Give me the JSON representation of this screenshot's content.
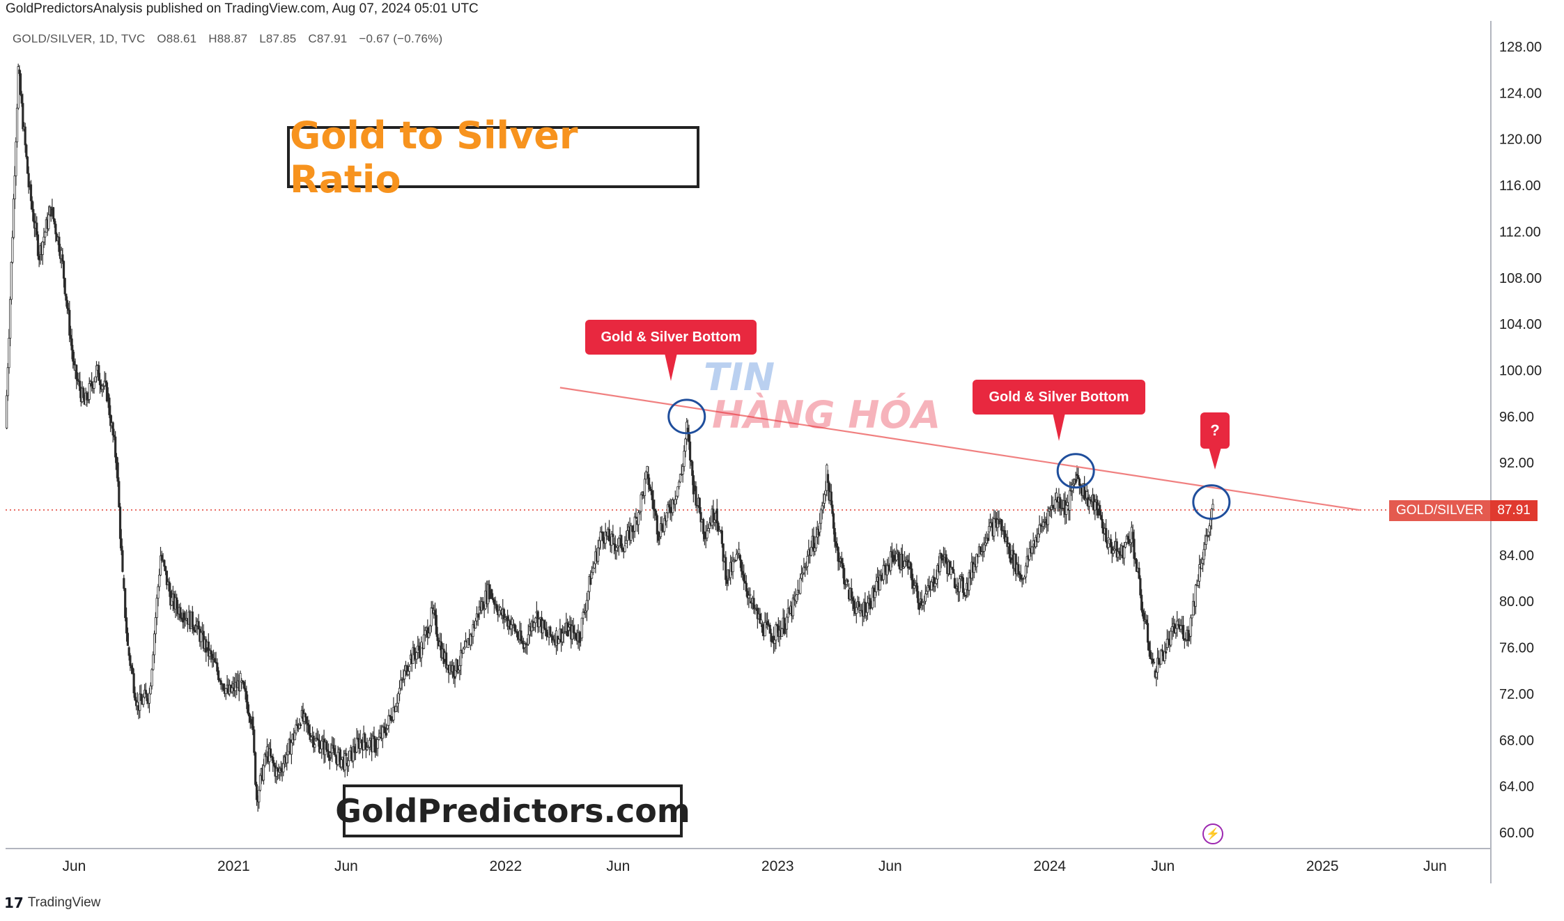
{
  "header": {
    "published": "GoldPredictorsAnalysis published on TradingView.com, Aug 07, 2024 05:01 UTC",
    "symbol_info": "GOLD/SILVER, 1D, TVC",
    "open": "O88.61",
    "high": "H88.87",
    "low": "L87.85",
    "close": "C87.91",
    "change": "−0.67 (−0.76%)"
  },
  "title_box": "Gold to Silver Ratio",
  "watermark_box": "GoldPredictors.com",
  "callouts": [
    "Gold & Silver Bottom",
    "Gold & Silver Bottom",
    "?"
  ],
  "price_tag": {
    "symbol": "GOLD/SILVER",
    "value": "87.91"
  },
  "footer": {
    "brand_logo": "17",
    "brand_name": "TradingView"
  },
  "stamp_logo": {
    "line1": "TIN",
    "line2": "HÀNG HÓA"
  },
  "colors": {
    "title": "#f7931e",
    "callout": "#e8283f",
    "trendline": "#f08080",
    "candle": "#2b2b2b",
    "circle": "#1f4e9c"
  },
  "chart_data": {
    "type": "line",
    "title": "Gold to Silver Ratio",
    "symbol": "GOLD/SILVER",
    "ylim": [
      58,
      130
    ],
    "y_ticks": [
      60,
      64,
      68,
      72,
      76,
      80,
      84,
      88,
      92,
      96,
      100,
      104,
      108,
      112,
      116,
      120,
      124,
      128
    ],
    "y_tick_labels": [
      "60.00",
      "64.00",
      "68.00",
      "72.00",
      "76.00",
      "80.00",
      "84.00",
      "88.00",
      "92.00",
      "96.00",
      "100.00",
      "104.00",
      "108.00",
      "112.00",
      "116.00",
      "120.00",
      "124.00",
      "128.00"
    ],
    "x_range": [
      "2020-03-01",
      "2025-08-15"
    ],
    "x_ticks": [
      {
        "date": "2020-06-01",
        "label": "Jun"
      },
      {
        "date": "2021-01-01",
        "label": "2021"
      },
      {
        "date": "2021-06-01",
        "label": "Jun"
      },
      {
        "date": "2022-01-01",
        "label": "2022"
      },
      {
        "date": "2022-06-01",
        "label": "Jun"
      },
      {
        "date": "2023-01-01",
        "label": "2023"
      },
      {
        "date": "2023-06-01",
        "label": "Jun"
      },
      {
        "date": "2024-01-01",
        "label": "2024"
      },
      {
        "date": "2024-06-01",
        "label": "Jun"
      },
      {
        "date": "2025-01-01",
        "label": "2025"
      },
      {
        "date": "2025-06-01",
        "label": "Jun"
      }
    ],
    "grid": false,
    "series": [
      {
        "values": [
          {
            "x": "2020-03-01",
            "y": 95.0
          },
          {
            "x": "2020-03-18",
            "y": 126.0
          },
          {
            "x": "2020-04-01",
            "y": 116.0
          },
          {
            "x": "2020-04-15",
            "y": 110.0
          },
          {
            "x": "2020-05-01",
            "y": 114.0
          },
          {
            "x": "2020-05-15",
            "y": 110.0
          },
          {
            "x": "2020-06-01",
            "y": 100.0
          },
          {
            "x": "2020-06-15",
            "y": 97.0
          },
          {
            "x": "2020-07-01",
            "y": 100.0
          },
          {
            "x": "2020-07-15",
            "y": 98.0
          },
          {
            "x": "2020-07-28",
            "y": 92.0
          },
          {
            "x": "2020-08-05",
            "y": 82.0
          },
          {
            "x": "2020-08-12",
            "y": 76.0
          },
          {
            "x": "2020-08-25",
            "y": 71.0
          },
          {
            "x": "2020-09-10",
            "y": 72.0
          },
          {
            "x": "2020-09-25",
            "y": 84.0
          },
          {
            "x": "2020-10-10",
            "y": 80.0
          },
          {
            "x": "2020-10-25",
            "y": 79.0
          },
          {
            "x": "2020-11-10",
            "y": 78.0
          },
          {
            "x": "2020-11-25",
            "y": 76.0
          },
          {
            "x": "2020-12-10",
            "y": 74.0
          },
          {
            "x": "2020-12-25",
            "y": 72.0
          },
          {
            "x": "2021-01-10",
            "y": 73.0
          },
          {
            "x": "2021-01-25",
            "y": 70.0
          },
          {
            "x": "2021-02-01",
            "y": 63.0
          },
          {
            "x": "2021-02-15",
            "y": 67.0
          },
          {
            "x": "2021-03-01",
            "y": 65.0
          },
          {
            "x": "2021-03-15",
            "y": 67.0
          },
          {
            "x": "2021-04-01",
            "y": 70.0
          },
          {
            "x": "2021-04-20",
            "y": 68.0
          },
          {
            "x": "2021-05-10",
            "y": 67.0
          },
          {
            "x": "2021-06-01",
            "y": 66.0
          },
          {
            "x": "2021-06-20",
            "y": 68.0
          },
          {
            "x": "2021-07-10",
            "y": 67.5
          },
          {
            "x": "2021-07-25",
            "y": 69.0
          },
          {
            "x": "2021-08-10",
            "y": 72.0
          },
          {
            "x": "2021-08-25",
            "y": 75.0
          },
          {
            "x": "2021-09-10",
            "y": 76.0
          },
          {
            "x": "2021-09-25",
            "y": 79.0
          },
          {
            "x": "2021-10-10",
            "y": 75.0
          },
          {
            "x": "2021-10-25",
            "y": 74.0
          },
          {
            "x": "2021-11-10",
            "y": 76.0
          },
          {
            "x": "2021-11-25",
            "y": 79.0
          },
          {
            "x": "2021-12-10",
            "y": 81.0
          },
          {
            "x": "2021-12-25",
            "y": 79.0
          },
          {
            "x": "2022-01-10",
            "y": 78.0
          },
          {
            "x": "2022-01-25",
            "y": 76.0
          },
          {
            "x": "2022-02-10",
            "y": 79.0
          },
          {
            "x": "2022-02-25",
            "y": 77.0
          },
          {
            "x": "2022-03-10",
            "y": 77.0
          },
          {
            "x": "2022-03-25",
            "y": 77.5
          },
          {
            "x": "2022-04-10",
            "y": 77.0
          },
          {
            "x": "2022-04-25",
            "y": 82.0
          },
          {
            "x": "2022-05-10",
            "y": 86.0
          },
          {
            "x": "2022-05-25",
            "y": 85.0
          },
          {
            "x": "2022-06-10",
            "y": 85.0
          },
          {
            "x": "2022-06-25",
            "y": 87.0
          },
          {
            "x": "2022-07-10",
            "y": 91.0
          },
          {
            "x": "2022-07-25",
            "y": 86.0
          },
          {
            "x": "2022-08-10",
            "y": 88.0
          },
          {
            "x": "2022-08-25",
            "y": 91.0
          },
          {
            "x": "2022-09-01",
            "y": 95.0
          },
          {
            "x": "2022-09-10",
            "y": 90.0
          },
          {
            "x": "2022-09-25",
            "y": 86.0
          },
          {
            "x": "2022-10-10",
            "y": 88.0
          },
          {
            "x": "2022-10-25",
            "y": 82.0
          },
          {
            "x": "2022-11-10",
            "y": 84.0
          },
          {
            "x": "2022-11-25",
            "y": 80.0
          },
          {
            "x": "2022-12-10",
            "y": 78.0
          },
          {
            "x": "2022-12-25",
            "y": 77.0
          },
          {
            "x": "2023-01-10",
            "y": 78.0
          },
          {
            "x": "2023-01-25",
            "y": 80.0
          },
          {
            "x": "2023-02-10",
            "y": 84.0
          },
          {
            "x": "2023-02-25",
            "y": 86.0
          },
          {
            "x": "2023-03-08",
            "y": 91.0
          },
          {
            "x": "2023-03-20",
            "y": 85.0
          },
          {
            "x": "2023-04-05",
            "y": 81.0
          },
          {
            "x": "2023-04-20",
            "y": 79.0
          },
          {
            "x": "2023-05-05",
            "y": 80.0
          },
          {
            "x": "2023-05-20",
            "y": 82.0
          },
          {
            "x": "2023-06-05",
            "y": 84.0
          },
          {
            "x": "2023-06-25",
            "y": 83.0
          },
          {
            "x": "2023-07-10",
            "y": 80.0
          },
          {
            "x": "2023-07-25",
            "y": 81.0
          },
          {
            "x": "2023-08-10",
            "y": 84.0
          },
          {
            "x": "2023-08-25",
            "y": 82.0
          },
          {
            "x": "2023-09-10",
            "y": 81.0
          },
          {
            "x": "2023-09-25",
            "y": 84.0
          },
          {
            "x": "2023-10-10",
            "y": 86.0
          },
          {
            "x": "2023-10-25",
            "y": 87.0
          },
          {
            "x": "2023-11-10",
            "y": 84.0
          },
          {
            "x": "2023-11-25",
            "y": 82.0
          },
          {
            "x": "2023-12-10",
            "y": 85.0
          },
          {
            "x": "2023-12-25",
            "y": 87.0
          },
          {
            "x": "2024-01-10",
            "y": 89.0
          },
          {
            "x": "2024-01-25",
            "y": 88.0
          },
          {
            "x": "2024-02-05",
            "y": 91.0
          },
          {
            "x": "2024-02-20",
            "y": 89.0
          },
          {
            "x": "2024-03-05",
            "y": 88.0
          },
          {
            "x": "2024-03-20",
            "y": 85.0
          },
          {
            "x": "2024-04-05",
            "y": 84.0
          },
          {
            "x": "2024-04-20",
            "y": 86.0
          },
          {
            "x": "2024-05-05",
            "y": 79.0
          },
          {
            "x": "2024-05-20",
            "y": 74.0
          },
          {
            "x": "2024-06-05",
            "y": 76.0
          },
          {
            "x": "2024-06-20",
            "y": 78.0
          },
          {
            "x": "2024-07-05",
            "y": 77.0
          },
          {
            "x": "2024-07-20",
            "y": 83.0
          },
          {
            "x": "2024-08-01",
            "y": 86.0
          },
          {
            "x": "2024-08-07",
            "y": 87.91
          }
        ]
      }
    ],
    "trendline": [
      {
        "x": "2022-03-15",
        "y": 98.5
      },
      {
        "x": "2025-02-20",
        "y": 87.9
      }
    ],
    "current_price_line": 87.91,
    "highlight_circles": [
      {
        "x": "2022-09-01",
        "y": 96.0
      },
      {
        "x": "2024-02-05",
        "y": 91.3
      },
      {
        "x": "2024-08-05",
        "y": 88.6
      }
    ],
    "annotations": [
      "Gold & Silver Bottom",
      "Gold & Silver Bottom",
      "?"
    ]
  }
}
